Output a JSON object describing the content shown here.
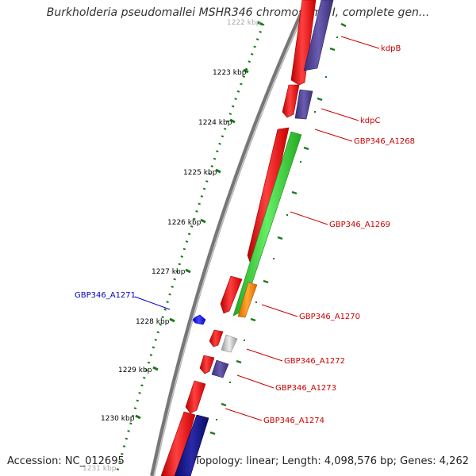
{
  "title": "Burkholderia pseudomallei MSHR346 chromosome I, complete gen...",
  "footer": {
    "accession": "Accession: NC_012695",
    "topology": "Topology: linear; Length: 4,098,576 bp; Genes: 4,262"
  },
  "ruler": {
    "ticks": [
      "1222 kbp",
      "1223 kbp",
      "1224 kbp",
      "1225 kbp",
      "1226 kbp",
      "1227 kbp",
      "1228 kbp",
      "1229 kbp",
      "1230 kbp",
      "1231 kbp"
    ]
  },
  "gene_labels": [
    {
      "text": "kdpB",
      "color": "#cc0000"
    },
    {
      "text": "kdpC",
      "color": "#cc0000"
    },
    {
      "text": "GBP346_A1268",
      "color": "#cc0000"
    },
    {
      "text": "GBP346_A1269",
      "color": "#cc0000"
    },
    {
      "text": "GBP346_A1270",
      "color": "#cc0000"
    },
    {
      "text": "GBP346_A1271",
      "color": "#0000cc"
    },
    {
      "text": "GBP346_A1272",
      "color": "#cc0000"
    },
    {
      "text": "GBP346_A1273",
      "color": "#cc0000"
    },
    {
      "text": "GBP346_A1274",
      "color": "#cc0000"
    }
  ],
  "colors": {
    "backbone": "#7a7a7a",
    "cds_red": "#ee1111",
    "cds_purple": "#4a3c8c",
    "cds_green": "#33cc33",
    "cds_orange": "#ff8800",
    "cds_blue": "#1111ee",
    "cds_grey": "#c0c0c0",
    "cds_navy": "#1a1a88",
    "tick_green": "#1a7a1a"
  }
}
